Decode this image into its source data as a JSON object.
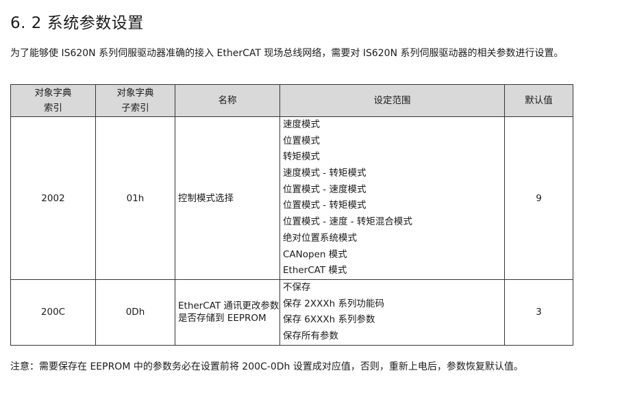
{
  "title": "6. 2 系统参数设置",
  "intro": "为了能够使 IS620N 系列伺服驱动器准确的接入 EtherCAT 现场总线网络，需要对 IS620N 系列伺服驱动器的相关参数进行设置。",
  "table": {
    "headers": {
      "index_l1": "对象字典",
      "index_l2": "索引",
      "sub_l1": "对象字典",
      "sub_l2": "子索引",
      "name": "名称",
      "range": "设定范围",
      "default": "默认值"
    },
    "rows": [
      {
        "index": "2002",
        "subindex": "01h",
        "name": "控制模式选择",
        "options": [
          "速度模式",
          "位置模式",
          "转矩模式",
          "速度模式 - 转矩模式",
          "位置模式 - 速度模式",
          "位置模式 - 转矩模式",
          "位置模式 - 速度 - 转矩混合模式",
          "绝对位置系统模式",
          "CANopen 模式",
          "EtherCAT 模式"
        ],
        "default": "9"
      },
      {
        "index": "200C",
        "subindex": "0Dh",
        "name": "EtherCAT 通讯更改参数是否存储到 EEPROM",
        "options": [
          "不保存",
          "保存 2XXXh 系列功能码",
          "保存 6XXXh 系列参数",
          "保存所有参数"
        ],
        "default": "3"
      }
    ]
  },
  "note": "注意：需要保存在 EEPROM 中的参数务必在设置前将 200C-0Dh 设置成对应值，否则，重新上电后，参数恢复默认值。"
}
